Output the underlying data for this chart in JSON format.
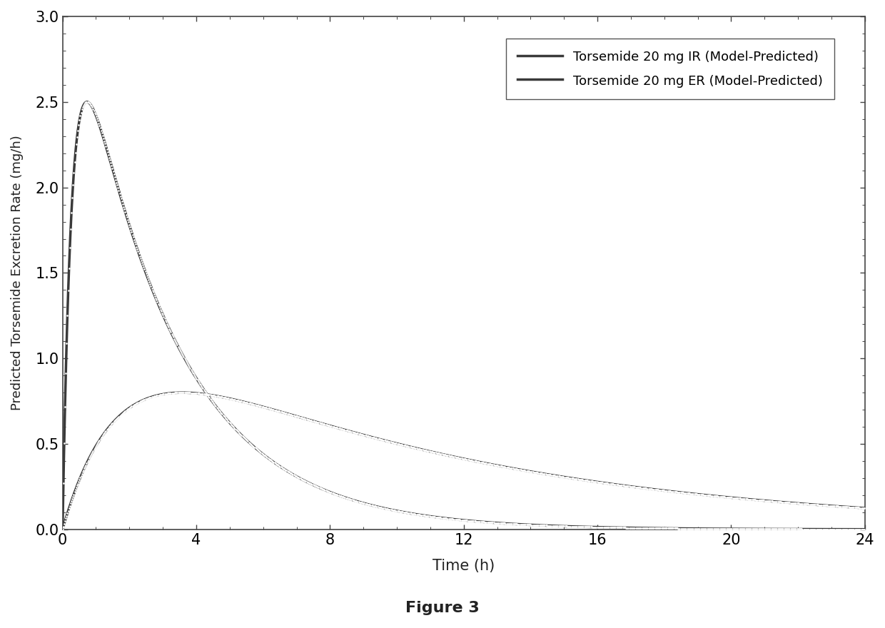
{
  "title": "",
  "xlabel": "Time (h)",
  "ylabel": "Predicted Torsemide Excretion Rate (mg/h)",
  "figure_caption": "Figure 3",
  "xlim": [
    0,
    24
  ],
  "ylim": [
    0,
    3.0
  ],
  "xticks": [
    0,
    4,
    8,
    12,
    16,
    20,
    24
  ],
  "yticks": [
    0.0,
    0.5,
    1.0,
    1.5,
    2.0,
    2.5,
    3.0
  ],
  "legend_labels": [
    "Torsemide 20 mg IR (Model-Predicted)",
    "Torsemide 20 mg ER (Model-Predicted)"
  ],
  "line_color": "#3a3a3a",
  "background_color": "#ffffff",
  "ir_alpha": 2.0,
  "ir_beta": 2.667,
  "ir_peak_time": 0.75,
  "ir_peak_value": 2.5,
  "er_alpha": 3.0,
  "er_beta": 0.72,
  "er_peak_time": 2.8,
  "er_peak_value": 0.8
}
